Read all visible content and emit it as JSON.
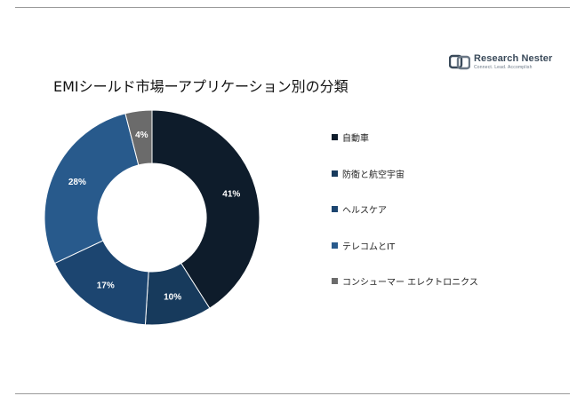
{
  "logo": {
    "name": "Research Nester",
    "tagline": "Connect. Lead. Accomplish"
  },
  "chart_data": {
    "type": "pie",
    "title": "EMIシールド市場ーアプリケーション別の分類",
    "categories": [
      "自動車",
      "防衛と航空宇宙",
      "ヘルスケア",
      "テレコムとIT",
      "コンシューマー エレクトロニクス"
    ],
    "values": [
      41,
      10,
      17,
      28,
      4
    ],
    "value_labels": [
      "41%",
      "10%",
      "17%",
      "28%",
      "4%"
    ],
    "colors": [
      "#0e1c2b",
      "#173a5c",
      "#1c4570",
      "#285a8c",
      "#6b6b6b"
    ],
    "label_colors": [
      "#ffffff",
      "#ffffff",
      "#ffffff",
      "#ffffff",
      "#ffffff"
    ],
    "donut": true,
    "start_angle_deg": 0,
    "direction": "clockwise",
    "legend_position": "right"
  }
}
